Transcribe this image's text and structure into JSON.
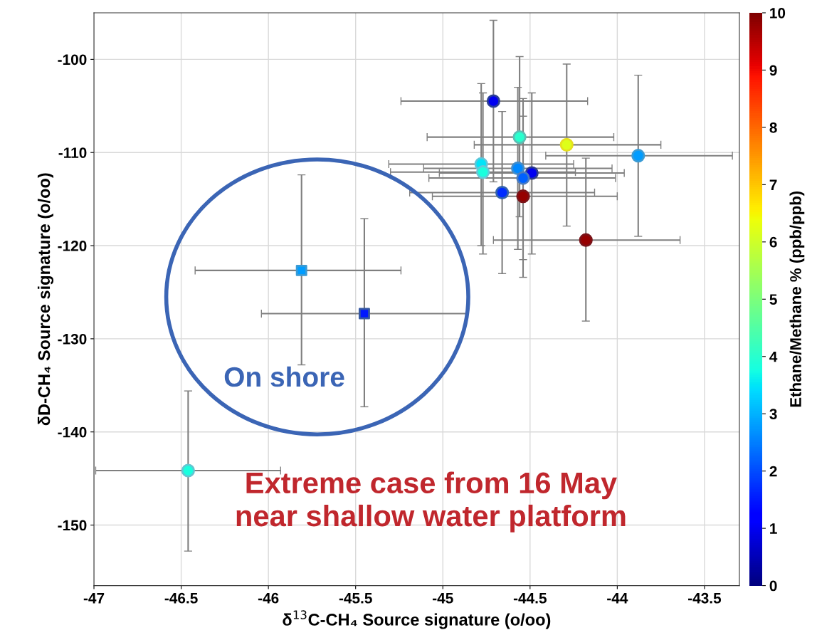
{
  "chart_data": {
    "type": "scatter",
    "xlabel": "δ$^{13}$C-CH₄ Source signature (o/oo)",
    "ylabel": "δD-CH₄ Source signature (o/oo)",
    "clabel": "Ethane/Methane % (ppb/ppb)",
    "xlim": [
      -47,
      -43.3
    ],
    "xticks": [
      -47,
      -46.5,
      -46,
      -45.5,
      -45,
      -44.5,
      -44,
      -43.5
    ],
    "ylim": [
      -156.5,
      -95
    ],
    "yticks": [
      -150,
      -140,
      -130,
      -120,
      -110,
      -100
    ],
    "clim": [
      0,
      10
    ],
    "cticks": [
      0,
      1,
      2,
      3,
      4,
      5,
      6,
      7,
      8,
      9,
      10
    ],
    "grid": true,
    "series": [
      {
        "marker": "circle",
        "x": [
          -44.71,
          -44.56,
          -44.29,
          -43.88,
          -44.78,
          -44.57,
          -44.77,
          -44.49,
          -44.54,
          -44.66,
          -44.54,
          -44.18,
          -46.46
        ],
        "values": [
          -104.48,
          -108.35,
          -109.17,
          -110.34,
          -111.24,
          -111.7,
          -112.1,
          -112.2,
          -112.74,
          -114.3,
          -114.7,
          -119.4,
          -144.15
        ],
        "cvalues": [
          1.0,
          4.0,
          6.2,
          2.8,
          3.5,
          2.6,
          3.8,
          1.0,
          2.2,
          1.7,
          9.8,
          9.8,
          3.8
        ],
        "colors": [
          "#2b3f96",
          "#5bbfb5",
          "#e6e01f",
          "#3a9bd5",
          "#5ec6d9",
          "#3f8ccc",
          "#63c8d8",
          "#2b3a8f",
          "#4a7cc0",
          "#3262ad",
          "#7a1318",
          "#7a1318",
          "#62c6d2"
        ],
        "errors": [
          [
            -113.15,
            -95.8
          ],
          [
            -116.9,
            -99.7
          ],
          [
            -117.9,
            -100.5
          ],
          [
            -119.0,
            -101.7
          ],
          [
            -120.0,
            -102.6
          ],
          [
            -120.4,
            -103.0
          ],
          [
            -120.9,
            -103.6
          ],
          [
            -120.9,
            -103.6
          ],
          [
            -121.5,
            -104.2
          ],
          [
            -123.0,
            -105.6
          ],
          [
            -123.4,
            -106.1
          ],
          [
            -128.1,
            -110.6
          ],
          [
            -152.8,
            -135.6
          ]
        ],
        "xerrors": [
          [
            -45.24,
            -44.17
          ],
          [
            -45.09,
            -44.02
          ],
          [
            -44.82,
            -43.75
          ],
          [
            -44.41,
            -43.34
          ],
          [
            -45.31,
            -44.25
          ],
          [
            -45.11,
            -44.03
          ],
          [
            -45.3,
            -44.24
          ],
          [
            -45.02,
            -43.96
          ],
          [
            -45.08,
            -44.01
          ],
          [
            -45.19,
            -44.13
          ],
          [
            -45.06,
            -44.0
          ],
          [
            -44.71,
            -43.64
          ],
          [
            -46.99,
            -45.93
          ]
        ]
      },
      {
        "marker": "square",
        "x": [
          -45.81,
          -45.45
        ],
        "values": [
          -122.66,
          -127.3
        ],
        "cvalues": [
          2.8,
          1.5
        ],
        "colors": [
          "#3a9bd5",
          "#3658a3"
        ],
        "errors": [
          [
            -132.8,
            -112.4
          ],
          [
            -137.3,
            -117.1
          ]
        ],
        "xerrors": [
          [
            -46.42,
            -45.24
          ],
          [
            -46.04,
            -44.86
          ]
        ]
      }
    ],
    "annotations": [
      "On shore",
      "Extreme case from 16 May\nnear shallow water platform"
    ]
  }
}
